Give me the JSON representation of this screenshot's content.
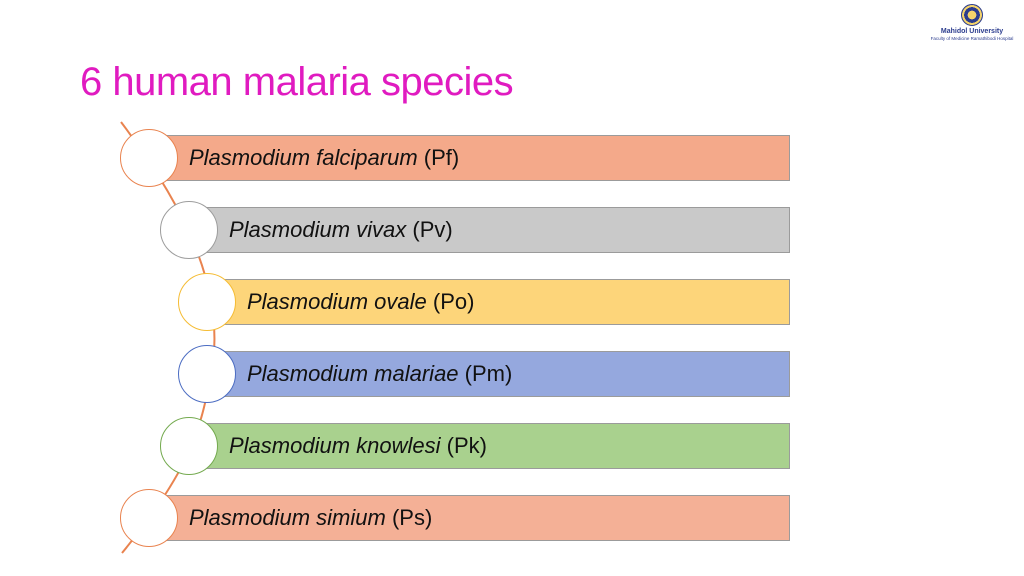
{
  "title": "6 human malaria species",
  "logo": {
    "name": "Mahidol University",
    "subtitle": "Faculty of Medicine Ramathibodi Hospital"
  },
  "species": [
    {
      "genus": "Plasmodium",
      "species": "falciparum",
      "abbr": "(Pf)",
      "fill": "#f4a98a",
      "border": "#e9834f"
    },
    {
      "genus": "Plasmodium",
      "species": "vivax",
      "abbr": "(Pv)",
      "fill": "#c9c9c9",
      "border": "#9d9d9d"
    },
    {
      "genus": "Plasmodium",
      "species": "ovale",
      "abbr": "(Po)",
      "fill": "#fdd57a",
      "border": "#f5bc34"
    },
    {
      "genus": "Plasmodium",
      "species": "malariae",
      "abbr": "(Pm)",
      "fill": "#95a8de",
      "border": "#4b6cc2"
    },
    {
      "genus": "Plasmodium",
      "species": "knowlesi",
      "abbr": "(Pk)",
      "fill": "#a9d18e",
      "border": "#74aa4f"
    },
    {
      "genus": "Plasmodium",
      "species": "simium",
      "abbr": "(Ps)",
      "fill": "#f4b096",
      "border": "#e9834f"
    }
  ]
}
